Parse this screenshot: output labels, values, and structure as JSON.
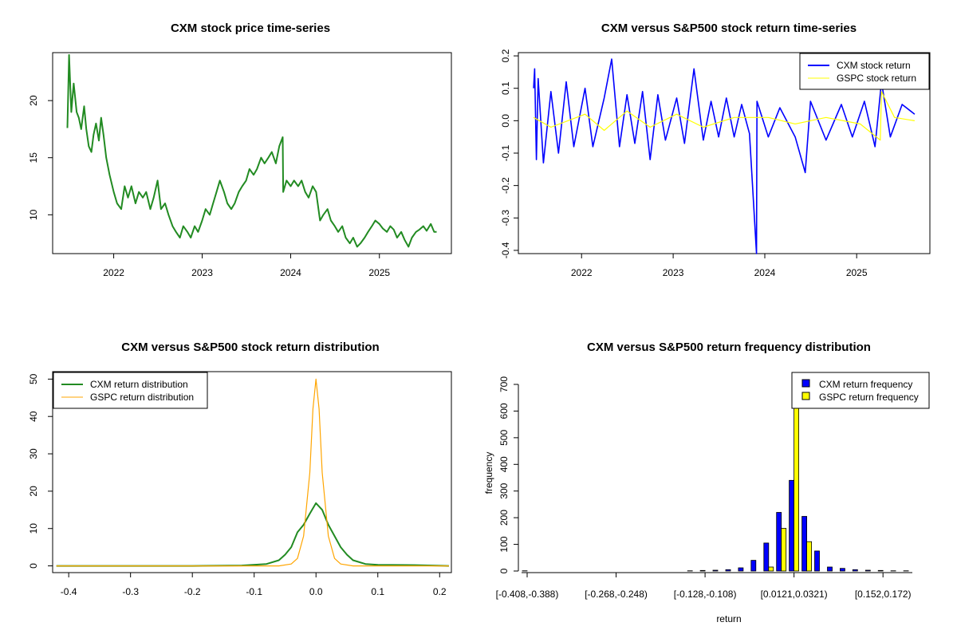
{
  "chart_data": [
    {
      "id": "price",
      "type": "line",
      "title": "CXM stock price time-series",
      "xlabel": "",
      "ylabel": "",
      "xticks": [
        "2022",
        "2023",
        "2024",
        "2025"
      ],
      "yticks": [
        10,
        15,
        20
      ],
      "ylim": [
        6.6,
        24.2
      ],
      "color": "#228b22",
      "series": [
        {
          "x": [
            "2021-06-24",
            "2021-07-01",
            "2021-07-10",
            "2021-07-20",
            "2021-08-01",
            "2021-08-10",
            "2021-08-20",
            "2021-09-01",
            "2021-09-10",
            "2021-09-20",
            "2021-10-01",
            "2021-10-10",
            "2021-10-20",
            "2021-11-01",
            "2021-11-10",
            "2021-11-20",
            "2021-12-01",
            "2021-12-15",
            "2022-01-01",
            "2022-01-15",
            "2022-02-01",
            "2022-02-15",
            "2022-03-01",
            "2022-03-15",
            "2022-04-01",
            "2022-04-15",
            "2022-05-01",
            "2022-05-15",
            "2022-06-01",
            "2022-06-15",
            "2022-07-01",
            "2022-07-15",
            "2022-08-01",
            "2022-08-15",
            "2022-09-01",
            "2022-09-15",
            "2022-10-01",
            "2022-10-15",
            "2022-11-01",
            "2022-11-15",
            "2022-12-01",
            "2022-12-15",
            "2023-01-01",
            "2023-01-15",
            "2023-02-01",
            "2023-02-15",
            "2023-03-01",
            "2023-03-15",
            "2023-04-01",
            "2023-04-15",
            "2023-05-01",
            "2023-05-15",
            "2023-06-01",
            "2023-06-15",
            "2023-07-01",
            "2023-07-15",
            "2023-08-01",
            "2023-08-15",
            "2023-09-01",
            "2023-09-15",
            "2023-10-01",
            "2023-10-15",
            "2023-11-01",
            "2023-11-15",
            "2023-11-29",
            "2023-12-01",
            "2023-12-15",
            "2024-01-01",
            "2024-01-15",
            "2024-02-01",
            "2024-02-15",
            "2024-03-01",
            "2024-03-15",
            "2024-04-01",
            "2024-04-15",
            "2024-05-01",
            "2024-05-15",
            "2024-06-01",
            "2024-06-15",
            "2024-07-01",
            "2024-07-15",
            "2024-08-01",
            "2024-08-15",
            "2024-09-01",
            "2024-09-15",
            "2024-10-01",
            "2024-10-15",
            "2024-11-01",
            "2024-11-15",
            "2024-12-01",
            "2024-12-15",
            "2025-01-01",
            "2025-01-15",
            "2025-02-01",
            "2025-02-15",
            "2025-03-01",
            "2025-03-15",
            "2025-04-01",
            "2025-04-15",
            "2025-05-01",
            "2025-05-15",
            "2025-06-01",
            "2025-06-15",
            "2025-07-01",
            "2025-07-15",
            "2025-08-01",
            "2025-08-15",
            "2025-08-25"
          ],
          "y": [
            17.6,
            24,
            19,
            21.5,
            19,
            18.5,
            17.5,
            19.5,
            17.5,
            16,
            15.5,
            17,
            18,
            16.5,
            18.5,
            17,
            15,
            13.5,
            12,
            11,
            10.5,
            12.5,
            11.5,
            12.5,
            11,
            12,
            11.5,
            12,
            10.5,
            11.5,
            13,
            10.5,
            11,
            10,
            9,
            8.5,
            8,
            9,
            8.5,
            8,
            9,
            8.5,
            9.5,
            10.5,
            10,
            11,
            12,
            13,
            12,
            11,
            10.5,
            11,
            12,
            12.5,
            13,
            14,
            13.5,
            14,
            15,
            14.5,
            15,
            15.5,
            14.5,
            16,
            16.8,
            12,
            13,
            12.5,
            13,
            12.5,
            13,
            12,
            11.5,
            12.5,
            12,
            9.5,
            10,
            10.5,
            9.5,
            9,
            8.5,
            9,
            8,
            7.5,
            8,
            7.2,
            7.5,
            8,
            8.5,
            9,
            9.5,
            9.2,
            8.8,
            8.5,
            9,
            8.7,
            8,
            8.5,
            7.8,
            7.2,
            8,
            8.5,
            8.7,
            9,
            8.6,
            9.2,
            8.5,
            8.5
          ]
        }
      ]
    },
    {
      "id": "returns",
      "type": "line",
      "title": "CXM versus S&P500 stock return time-series",
      "xlabel": "",
      "ylabel": "",
      "xticks": [
        "2022",
        "2023",
        "2024",
        "2025"
      ],
      "yticks": [
        "-0.4",
        "-0.3",
        "-0.2",
        "-0.1",
        "0.0",
        "0.1",
        "0.2"
      ],
      "ylim": [
        -0.41,
        0.21
      ],
      "series": [
        {
          "name": "CXM stock return",
          "color": "#0000ff",
          "x": [
            "2021-06-24",
            "2021-06-28",
            "2021-07-05",
            "2021-07-12",
            "2021-08-02",
            "2021-09-01",
            "2021-10-01",
            "2021-11-01",
            "2021-12-01",
            "2022-01-15",
            "2022-02-15",
            "2022-04-01",
            "2022-05-01",
            "2022-06-01",
            "2022-07-01",
            "2022-08-01",
            "2022-09-01",
            "2022-10-01",
            "2022-11-01",
            "2022-12-01",
            "2023-01-15",
            "2023-02-15",
            "2023-03-25",
            "2023-05-01",
            "2023-06-01",
            "2023-07-01",
            "2023-08-01",
            "2023-09-01",
            "2023-10-01",
            "2023-11-01",
            "2023-11-29",
            "2023-12-01",
            "2024-01-15",
            "2024-03-01",
            "2024-05-01",
            "2024-06-10",
            "2024-07-01",
            "2024-09-01",
            "2024-11-01",
            "2024-12-15",
            "2025-02-01",
            "2025-03-15",
            "2025-04-10",
            "2025-05-15",
            "2025-07-01",
            "2025-08-20"
          ],
          "y": [
            0.1,
            0.16,
            -0.12,
            0.13,
            -0.13,
            0.09,
            -0.1,
            0.12,
            -0.08,
            0.1,
            -0.08,
            0.07,
            0.19,
            -0.08,
            0.08,
            -0.07,
            0.09,
            -0.12,
            0.08,
            -0.06,
            0.07,
            -0.07,
            0.16,
            -0.06,
            0.06,
            -0.05,
            0.07,
            -0.05,
            0.05,
            -0.04,
            -0.41,
            0.06,
            -0.05,
            0.04,
            -0.05,
            -0.16,
            0.06,
            -0.06,
            0.05,
            -0.05,
            0.06,
            -0.08,
            0.12,
            -0.05,
            0.05,
            0.02
          ]
        },
        {
          "name": "GSPC stock return",
          "color": "#ffff00",
          "x": [
            "2021-06-24",
            "2021-09-01",
            "2022-01-15",
            "2022-04-01",
            "2022-07-01",
            "2022-10-01",
            "2023-01-15",
            "2023-05-01",
            "2023-09-01",
            "2024-01-15",
            "2024-05-01",
            "2024-09-01",
            "2025-01-15",
            "2025-04-05",
            "2025-04-10",
            "2025-06-01",
            "2025-08-20"
          ],
          "y": [
            0.01,
            -0.02,
            0.02,
            -0.03,
            0.03,
            -0.02,
            0.02,
            -0.02,
            0.01,
            0.01,
            -0.01,
            0.01,
            -0.01,
            -0.06,
            0.09,
            0.01,
            0.0
          ]
        }
      ],
      "legend": "top-right"
    },
    {
      "id": "density",
      "type": "line",
      "title": "CXM versus S&P500 stock return distribution",
      "xlabel": "",
      "ylabel": "",
      "xticks": [
        "-0.4",
        "-0.3",
        "-0.2",
        "-0.1",
        "0.0",
        "0.1",
        "0.2"
      ],
      "yticks": [
        0,
        10,
        20,
        30,
        40,
        50
      ],
      "xlim": [
        -0.42,
        0.215
      ],
      "ylim": [
        0,
        52
      ],
      "series": [
        {
          "name": "CXM return distribution",
          "color": "#228b22",
          "x": [
            -0.42,
            -0.2,
            -0.12,
            -0.08,
            -0.06,
            -0.05,
            -0.04,
            -0.035,
            -0.03,
            -0.02,
            -0.01,
            0.0,
            0.01,
            0.02,
            0.03,
            0.04,
            0.05,
            0.06,
            0.08,
            0.1,
            0.16,
            0.215
          ],
          "y": [
            0,
            0,
            0.1,
            0.5,
            1.5,
            3,
            5,
            7,
            9,
            11,
            14,
            16.8,
            15,
            11,
            8,
            5,
            3,
            1.5,
            0.5,
            0.3,
            0.2,
            0
          ]
        },
        {
          "name": "GSPC return distribution",
          "color": "#ffa500",
          "x": [
            -0.42,
            -0.06,
            -0.04,
            -0.03,
            -0.02,
            -0.01,
            -0.005,
            0.0,
            0.005,
            0.01,
            0.02,
            0.03,
            0.04,
            0.06,
            0.215
          ],
          "y": [
            0,
            0,
            0.5,
            2,
            8,
            25,
            42,
            50,
            42,
            25,
            8,
            2,
            0.5,
            0,
            0
          ]
        }
      ],
      "legend": "top-left"
    },
    {
      "id": "hist",
      "type": "bar",
      "title": "CXM versus S&P500 return frequency distribution",
      "xlabel": "return",
      "ylabel": "frequency",
      "xtick_labels": [
        "[-0.408,-0.388)",
        "[-0.268,-0.248)",
        "[-0.128,-0.108)",
        "[0.0121,0.0321)",
        "[0.152,0.172)"
      ],
      "yticks": [
        0,
        100,
        200,
        300,
        400,
        500,
        600,
        700
      ],
      "ylim": [
        0,
        720
      ],
      "series": [
        {
          "name": "CXM return frequency",
          "color": "#0000ff",
          "values": [
            1,
            0,
            0,
            0,
            0,
            0,
            0,
            0,
            0,
            0,
            0,
            0,
            0,
            1,
            2,
            3,
            5,
            12,
            40,
            105,
            220,
            340,
            205,
            75,
            15,
            10,
            5,
            3,
            2,
            1,
            1
          ]
        },
        {
          "name": "GSPC return frequency",
          "color": "#ffff00",
          "values": [
            0,
            0,
            0,
            0,
            0,
            0,
            0,
            0,
            0,
            0,
            0,
            0,
            0,
            0,
            0,
            0,
            0,
            0,
            0,
            15,
            160,
            720,
            110,
            0,
            0,
            0,
            0,
            0,
            0,
            0,
            0
          ]
        }
      ],
      "legend": "top-right"
    }
  ]
}
